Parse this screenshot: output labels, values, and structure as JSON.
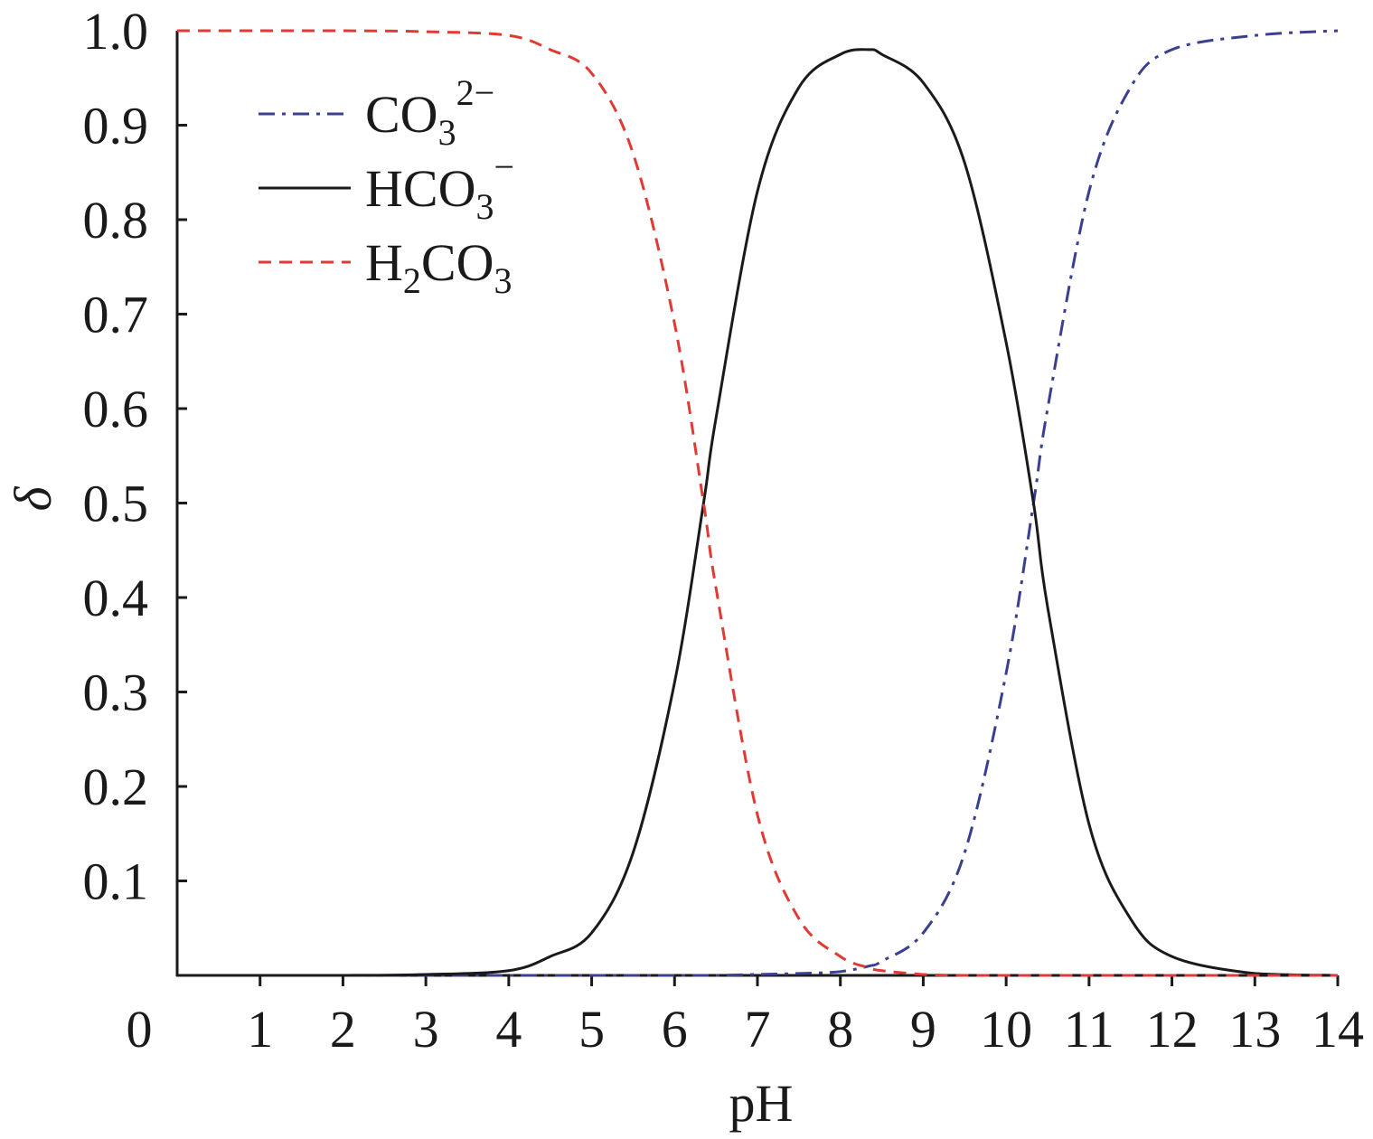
{
  "chart_data": {
    "type": "line",
    "title": "",
    "xlabel": "pH",
    "ylabel": "δ",
    "xlim": [
      0,
      14
    ],
    "ylim": [
      0,
      1.0
    ],
    "x_ticks": [
      0,
      1,
      2,
      3,
      4,
      5,
      6,
      7,
      8,
      9,
      10,
      11,
      12,
      13,
      14
    ],
    "x_tick_labels": [
      "0",
      "1",
      "2",
      "3",
      "4",
      "5",
      "6",
      "7",
      "8",
      "9",
      "10",
      "11",
      "12",
      "13",
      "14"
    ],
    "y_ticks": [
      0.1,
      0.2,
      0.3,
      0.4,
      0.5,
      0.6,
      0.7,
      0.8,
      0.9,
      1.0
    ],
    "y_tick_labels": [
      "0.1",
      "0.2",
      "0.3",
      "0.4",
      "0.5",
      "0.6",
      "0.7",
      "0.8",
      "0.9",
      "1.0"
    ],
    "grid": false,
    "legend_position": "top-left",
    "x": [
      0,
      1,
      2,
      3,
      4,
      4.5,
      5,
      5.5,
      6,
      6.35,
      6.5,
      7,
      7.5,
      8,
      8.35,
      8.5,
      9,
      9.5,
      10,
      10.33,
      10.5,
      11,
      11.5,
      12,
      13,
      14
    ],
    "series": [
      {
        "legend": {
          "base": "CO",
          "sub": "3",
          "sup": "2−"
        },
        "style": "dash-dot",
        "color": "#3b3f8f",
        "values": [
          0,
          0,
          0,
          0,
          0,
          0,
          0,
          0,
          0,
          0,
          0,
          0.001,
          0.002,
          0.004,
          0.01,
          0.015,
          0.045,
          0.13,
          0.32,
          0.5,
          0.6,
          0.83,
          0.94,
          0.98,
          0.995,
          1.0
        ]
      },
      {
        "legend": {
          "base": "HCO",
          "sub": "3",
          "sup": "−"
        },
        "style": "solid",
        "color": "#1a1a1a",
        "values": [
          0,
          0,
          0,
          0.001,
          0.005,
          0.02,
          0.045,
          0.13,
          0.31,
          0.5,
          0.59,
          0.83,
          0.94,
          0.975,
          0.98,
          0.975,
          0.945,
          0.86,
          0.67,
          0.5,
          0.39,
          0.16,
          0.06,
          0.02,
          0.002,
          0
        ]
      },
      {
        "legend": {
          "base": "H",
          "sub": "2",
          "tail": "CO",
          "sub2": "3"
        },
        "style": "dashed",
        "color": "#e03a34",
        "values": [
          1.0,
          1.0,
          1.0,
          0.999,
          0.995,
          0.98,
          0.955,
          0.87,
          0.69,
          0.5,
          0.41,
          0.17,
          0.06,
          0.02,
          0.008,
          0.005,
          0.001,
          0,
          0,
          0,
          0,
          0,
          0,
          0,
          0,
          0
        ]
      }
    ]
  }
}
